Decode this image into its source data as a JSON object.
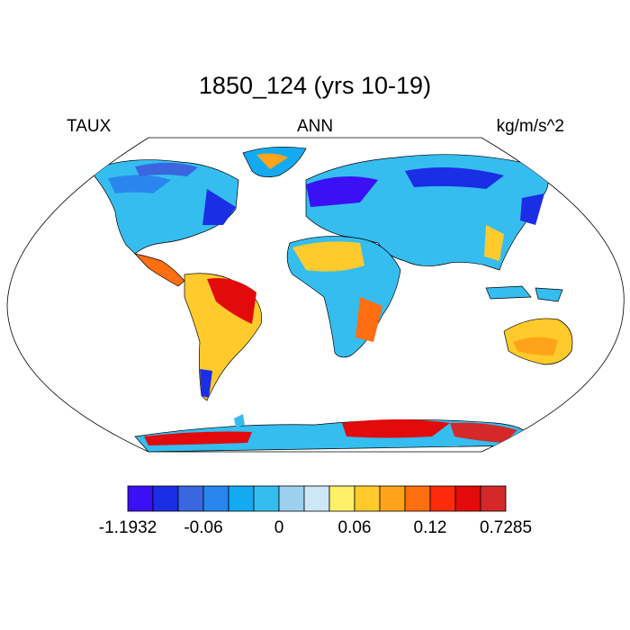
{
  "header": {
    "title": "1850_124 (yrs 10-19)",
    "left_label": "TAUX",
    "center_label": "ANN",
    "right_label": "kg/m/s^2"
  },
  "colors": {
    "land_outline": "#000000",
    "ocean": "#ffffff"
  },
  "colorbar": {
    "colors": [
      "#3b10f5",
      "#1a2ee6",
      "#3a66e0",
      "#2a86ee",
      "#14aaf2",
      "#35bdf0",
      "#9dd0ee",
      "#cde7f7",
      "#fff06a",
      "#ffcb2c",
      "#ffa41a",
      "#ff6e10",
      "#ff2b0a",
      "#e20a0a",
      "#d52828"
    ],
    "tick_labels": [
      "-1.1932",
      "-0.06",
      "0",
      "0.06",
      "0.12",
      "0.7285"
    ]
  },
  "chart_data": {
    "type": "heatmap",
    "projection": "robinson",
    "variable": "TAUX",
    "season": "ANN",
    "units": "kg/m/s^2",
    "range": [
      -1.1932,
      0.7285
    ],
    "levels": [
      -0.06,
      0,
      0.06,
      0.12
    ],
    "regions": [
      {
        "name": "North America",
        "value": -0.05
      },
      {
        "name": "Central America",
        "value": 0.1
      },
      {
        "name": "South America",
        "value": 0.09
      },
      {
        "name": "Europe / Northern Asia",
        "value": -0.08
      },
      {
        "name": "Africa",
        "value": 0.05
      },
      {
        "name": "Australia",
        "value": 0.07
      },
      {
        "name": "Antarctica",
        "value": 0.11
      },
      {
        "name": "Greenland",
        "value": 0.04
      }
    ]
  }
}
